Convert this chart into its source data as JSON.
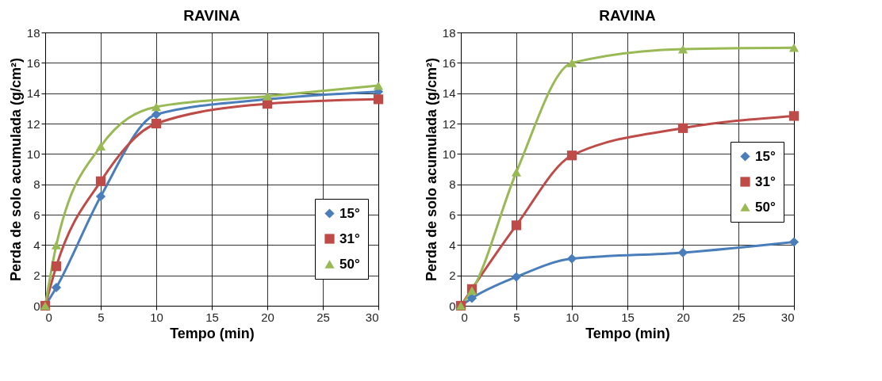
{
  "chart_data": [
    {
      "type": "line",
      "title": "RAVINA",
      "xlabel": "Tempo (min)",
      "ylabel": "Perda de solo acumulada (g/cm²)",
      "x": [
        0,
        1,
        5,
        10,
        20,
        30
      ],
      "series": [
        {
          "name": "15°",
          "color": "#4a7ebb",
          "marker": "diamond",
          "values": [
            0,
            1.2,
            7.2,
            12.6,
            13.6,
            14.1
          ]
        },
        {
          "name": "31°",
          "color": "#be4b48",
          "marker": "square",
          "values": [
            0,
            2.6,
            8.2,
            12.0,
            13.3,
            13.6
          ]
        },
        {
          "name": "50°",
          "color": "#98b954",
          "marker": "triangle",
          "values": [
            0,
            4.0,
            10.5,
            13.1,
            13.8,
            14.5
          ]
        }
      ],
      "xlim": [
        0,
        30
      ],
      "xticks": [
        0,
        5,
        10,
        15,
        20,
        25,
        30
      ],
      "ylim": [
        0,
        18
      ],
      "yticks": [
        0,
        2,
        4,
        6,
        8,
        10,
        12,
        14,
        16,
        18
      ],
      "grid": true,
      "legend": "bottom right",
      "line_style": "solid"
    },
    {
      "type": "line",
      "title": "RAVINA",
      "xlabel": "Tempo (min)",
      "ylabel": "Perda de solo acumulada (g/cm²)",
      "x": [
        0,
        1,
        5,
        10,
        20,
        30
      ],
      "series": [
        {
          "name": "15°",
          "color": "#4a7ebb",
          "marker": "diamond",
          "values": [
            0,
            0.5,
            1.9,
            3.1,
            3.5,
            4.2
          ]
        },
        {
          "name": "31°",
          "color": "#be4b48",
          "marker": "square",
          "values": [
            0,
            1.1,
            5.3,
            9.9,
            11.7,
            12.5
          ]
        },
        {
          "name": "50°",
          "color": "#98b954",
          "marker": "triangle",
          "values": [
            0,
            1.0,
            8.8,
            16.0,
            16.9,
            17.0
          ]
        }
      ],
      "xlim": [
        0,
        30
      ],
      "xticks": [
        0,
        5,
        10,
        15,
        20,
        25,
        30
      ],
      "ylim": [
        0,
        18
      ],
      "yticks": [
        0,
        2,
        4,
        6,
        8,
        10,
        12,
        14,
        16,
        18
      ],
      "grid": true,
      "legend": "right",
      "line_style": "solid"
    }
  ]
}
